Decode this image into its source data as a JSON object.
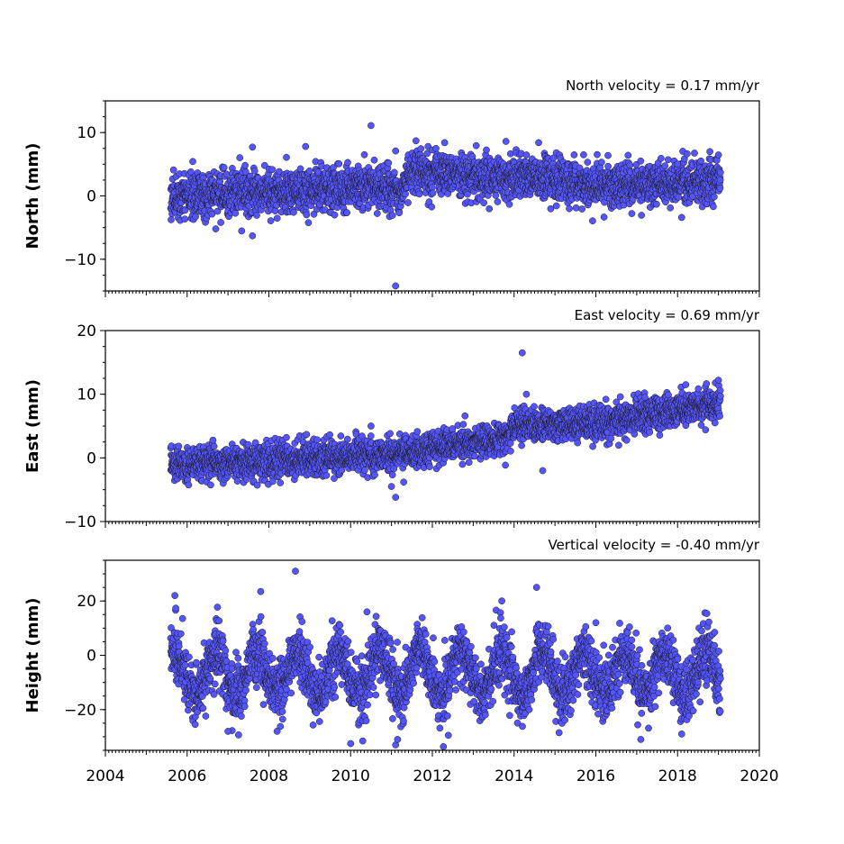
{
  "colors": {
    "marker_fill": "#5555ff",
    "marker_edge": "#1a1a1a",
    "axes": "#000000",
    "background": "#ffffff"
  },
  "chart_data": [
    {
      "type": "scatter",
      "title": "North velocity = 0.17 mm/yr",
      "ylabel": "North (mm)",
      "xlim": [
        2004,
        2020
      ],
      "ylim": [
        -15,
        15
      ],
      "yticks": [
        {
          "v": -10,
          "label": "−10"
        },
        {
          "v": 0,
          "label": "0"
        },
        {
          "v": 10,
          "label": "10"
        }
      ],
      "x_tick_labels_shown": false,
      "grid": false,
      "data_span": [
        2005.6,
        2019.05
      ],
      "trend_segments": [
        [
          2005.6,
          0.0
        ],
        [
          2008.0,
          0.5
        ],
        [
          2010.0,
          1.5
        ],
        [
          2011.2,
          1.0
        ],
        [
          2011.5,
          4.0
        ],
        [
          2013.0,
          3.0
        ],
        [
          2014.5,
          3.0
        ],
        [
          2016.0,
          1.5
        ],
        [
          2019.05,
          2.5
        ]
      ],
      "scatter_spread_mm": 1.7,
      "outliers": [
        {
          "x": 2007.6,
          "y": 7.7
        },
        {
          "x": 2007.6,
          "y": -6.3
        },
        {
          "x": 2008.9,
          "y": 7.8
        },
        {
          "x": 2010.5,
          "y": 11.1
        },
        {
          "x": 2011.1,
          "y": 7.1
        },
        {
          "x": 2011.1,
          "y": -14.2
        },
        {
          "x": 2011.6,
          "y": 8.7
        },
        {
          "x": 2012.3,
          "y": 8.4
        },
        {
          "x": 2013.8,
          "y": 8.6
        },
        {
          "x": 2014.6,
          "y": 8.4
        },
        {
          "x": 2015.7,
          "y": 6.5
        },
        {
          "x": 2018.0,
          "y": 5.0
        },
        {
          "x": 2018.1,
          "y": -3.4
        },
        {
          "x": 2006.7,
          "y": -5.2
        }
      ]
    },
    {
      "type": "scatter",
      "title": "East velocity = 0.69 mm/yr",
      "ylabel": "East (mm)",
      "xlim": [
        2004,
        2020
      ],
      "ylim": [
        -10,
        20
      ],
      "yticks": [
        {
          "v": -10,
          "label": "−10"
        },
        {
          "v": 0,
          "label": "0"
        },
        {
          "v": 10,
          "label": "10"
        },
        {
          "v": 20,
          "label": "20"
        }
      ],
      "x_tick_labels_shown": false,
      "grid": false,
      "data_span": [
        2005.6,
        2019.05
      ],
      "trend_segments": [
        [
          2005.6,
          -1.0
        ],
        [
          2008.0,
          -0.5
        ],
        [
          2011.0,
          0.5
        ],
        [
          2012.0,
          1.5
        ],
        [
          2013.8,
          3.0
        ],
        [
          2014.0,
          5.0
        ],
        [
          2016.0,
          5.5
        ],
        [
          2019.05,
          8.5
        ]
      ],
      "scatter_spread_mm": 1.3,
      "outliers": [
        {
          "x": 2014.2,
          "y": 16.5
        },
        {
          "x": 2014.3,
          "y": 10.0
        },
        {
          "x": 2010.5,
          "y": 5.0
        },
        {
          "x": 2011.0,
          "y": -4.5
        },
        {
          "x": 2011.1,
          "y": -6.2
        },
        {
          "x": 2011.3,
          "y": -3.8
        },
        {
          "x": 2012.8,
          "y": 6.6
        },
        {
          "x": 2014.7,
          "y": -2.0
        },
        {
          "x": 2017.2,
          "y": 9.5
        },
        {
          "x": 2018.2,
          "y": 11.5
        },
        {
          "x": 2019.0,
          "y": 12.2
        },
        {
          "x": 2016.6,
          "y": 9.6
        }
      ]
    },
    {
      "type": "scatter",
      "title": "Vertical velocity = -0.40 mm/yr",
      "ylabel": "Height (mm)",
      "xlabel": "",
      "xlim": [
        2004,
        2020
      ],
      "ylim": [
        -35,
        35
      ],
      "yticks": [
        {
          "v": -20,
          "label": "−20"
        },
        {
          "v": 0,
          "label": "0"
        },
        {
          "v": 20,
          "label": "20"
        }
      ],
      "xticks": [
        {
          "v": 2004,
          "label": "2004"
        },
        {
          "v": 2006,
          "label": "2006"
        },
        {
          "v": 2008,
          "label": "2008"
        },
        {
          "v": 2010,
          "label": "2010"
        },
        {
          "v": 2012,
          "label": "2012"
        },
        {
          "v": 2014,
          "label": "2014"
        },
        {
          "v": 2016,
          "label": "2016"
        },
        {
          "v": 2018,
          "label": "2018"
        },
        {
          "v": 2020,
          "label": "2020"
        }
      ],
      "x_tick_labels_shown": true,
      "grid": false,
      "data_span": [
        2005.6,
        2019.05
      ],
      "mean_mm": -6.5,
      "seasonal_amplitude_mm": 8.0,
      "seasonal_peak_fraction_of_year": 0.7,
      "scatter_spread_mm": 5.5,
      "outliers": [
        {
          "x": 2008.65,
          "y": 31.0
        },
        {
          "x": 2014.55,
          "y": 25.0
        },
        {
          "x": 2007.8,
          "y": 23.5
        },
        {
          "x": 2005.7,
          "y": 22.0
        },
        {
          "x": 2013.7,
          "y": 20.0
        },
        {
          "x": 2011.1,
          "y": -33.0
        },
        {
          "x": 2010.0,
          "y": -32.5
        },
        {
          "x": 2011.15,
          "y": -31.0
        },
        {
          "x": 2017.1,
          "y": -31.0
        },
        {
          "x": 2008.2,
          "y": -28.0
        },
        {
          "x": 2007.0,
          "y": -28.0
        },
        {
          "x": 2015.1,
          "y": -28.5
        },
        {
          "x": 2018.1,
          "y": -29.0
        },
        {
          "x": 2010.4,
          "y": 16.0
        },
        {
          "x": 2016.0,
          "y": 12.0
        }
      ]
    }
  ]
}
